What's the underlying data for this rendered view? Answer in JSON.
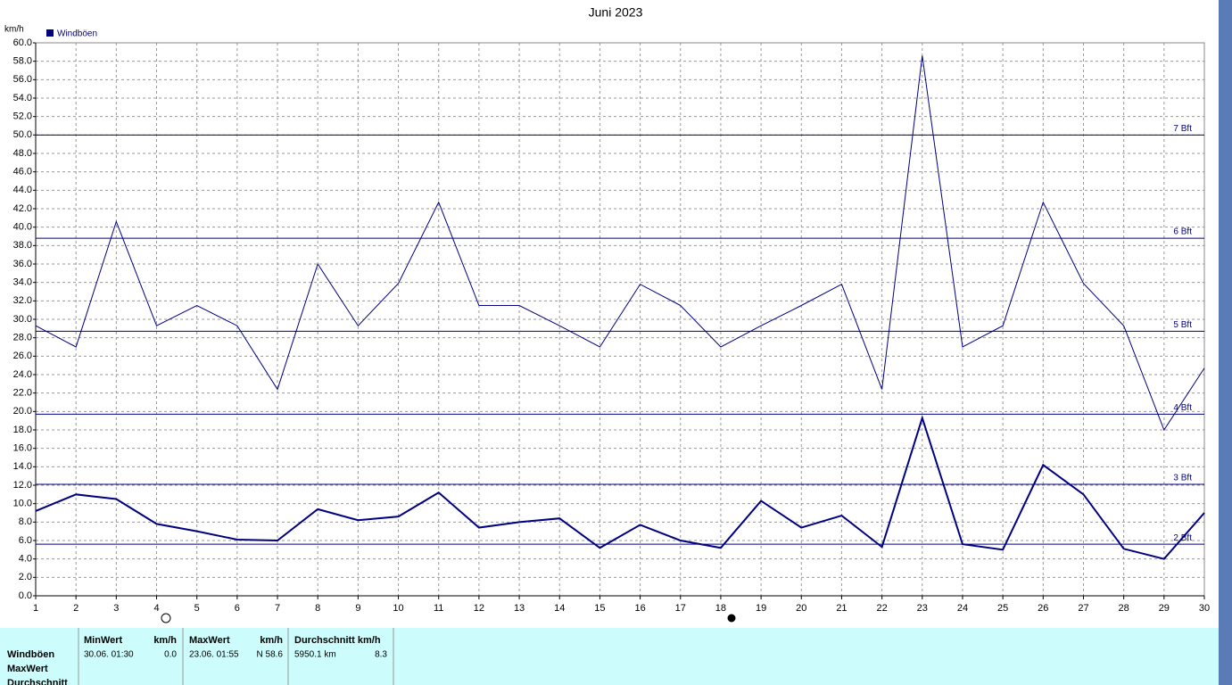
{
  "chart_data": {
    "type": "line",
    "title": "Juni 2023",
    "y_label": "km/h",
    "x": [
      1,
      2,
      3,
      4,
      5,
      6,
      7,
      8,
      9,
      10,
      11,
      12,
      13,
      14,
      15,
      16,
      17,
      18,
      19,
      20,
      21,
      22,
      23,
      24,
      25,
      26,
      27,
      28,
      29,
      30
    ],
    "xlim": [
      1,
      30
    ],
    "xticks": [
      1,
      2,
      3,
      4,
      5,
      6,
      7,
      8,
      9,
      10,
      11,
      12,
      13,
      14,
      15,
      16,
      17,
      18,
      19,
      20,
      21,
      22,
      23,
      24,
      25,
      26,
      27,
      28,
      29,
      30
    ],
    "ylim": [
      0,
      60
    ],
    "yticks": [
      {
        "value": 0,
        "label": "0.0"
      },
      {
        "value": 2,
        "label": "2.0"
      },
      {
        "value": 4,
        "label": "4.0"
      },
      {
        "value": 6,
        "label": "6.0"
      },
      {
        "value": 8,
        "label": "8.0"
      },
      {
        "value": 10,
        "label": "10.0"
      },
      {
        "value": 12,
        "label": "12.0"
      },
      {
        "value": 14,
        "label": "14.0"
      },
      {
        "value": 16,
        "label": "16.0"
      },
      {
        "value": 18,
        "label": "18.0"
      },
      {
        "value": 20,
        "label": "20.0"
      },
      {
        "value": 22,
        "label": "22.0"
      },
      {
        "value": 24,
        "label": "24.0"
      },
      {
        "value": 26,
        "label": "26.0"
      },
      {
        "value": 28,
        "label": "28.0"
      },
      {
        "value": 30,
        "label": "30.0"
      },
      {
        "value": 32,
        "label": "32.0"
      },
      {
        "value": 34,
        "label": "34.0"
      },
      {
        "value": 36,
        "label": "36.0"
      },
      {
        "value": 38,
        "label": "38.0"
      },
      {
        "value": 40,
        "label": "40.0"
      },
      {
        "value": 42,
        "label": "42.0"
      },
      {
        "value": 44,
        "label": "44.0"
      },
      {
        "value": 46,
        "label": "46.0"
      },
      {
        "value": 48,
        "label": "48.0"
      },
      {
        "value": 50,
        "label": "50.0"
      },
      {
        "value": 52,
        "label": "52.0"
      },
      {
        "value": 54,
        "label": "54.0"
      },
      {
        "value": 56,
        "label": "56.0"
      },
      {
        "value": 58,
        "label": "58.0"
      },
      {
        "value": 60,
        "label": "60.0"
      }
    ],
    "grid": true,
    "legend": "top-left",
    "series": [
      {
        "name": "Windböen",
        "color": "#000080",
        "width": 2,
        "values": [
          9.2,
          11.0,
          10.5,
          7.8,
          7.0,
          6.1,
          6.0,
          9.4,
          8.2,
          8.6,
          11.2,
          7.4,
          8.0,
          8.4,
          5.2,
          7.7,
          6.0,
          5.2,
          10.3,
          7.4,
          8.7,
          5.3,
          19.3,
          5.6,
          5.0,
          14.2,
          11.0,
          5.1,
          4.0,
          9.0
        ]
      },
      {
        "color": "#000080",
        "width": 1,
        "values": [
          29.3,
          27.0,
          40.6,
          29.3,
          31.5,
          29.3,
          22.4,
          36.0,
          29.3,
          33.9,
          42.7,
          31.5,
          31.5,
          29.3,
          27.0,
          33.8,
          31.5,
          27.0,
          29.3,
          31.5,
          33.8,
          22.4,
          58.6,
          27.0,
          29.3,
          42.7,
          33.9,
          29.3,
          18.0,
          24.7
        ]
      }
    ],
    "reference_lines": [
      {
        "value": 50.0,
        "label": "7 Bft"
      },
      {
        "value": 38.8,
        "label": "6 Bft"
      },
      {
        "value": 28.7,
        "label": "5 Bft"
      },
      {
        "value": 19.7,
        "label": "4 Bft"
      },
      {
        "value": 12.1,
        "label": "3 Bft"
      },
      {
        "value": 5.6,
        "label": "2 Bft"
      }
    ]
  },
  "summary_table": {
    "row_labels": [
      "Windböen",
      "MaxWert",
      "Durchschnitt"
    ],
    "columns": [
      {
        "header": "MinWert",
        "unit": "km/h",
        "time": "30.06.  01:30",
        "value": "0.0"
      },
      {
        "header": "MaxWert",
        "unit": "km/h",
        "time": "23.06.  01:55",
        "value": "N 58.6"
      },
      {
        "header": "Durchschnitt km/h",
        "time": "5950.1 km",
        "value": "8.3"
      }
    ]
  }
}
